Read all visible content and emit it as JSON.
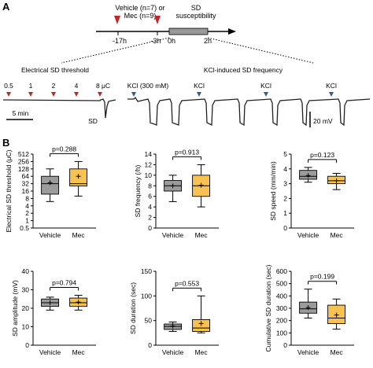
{
  "panel_a": {
    "letter": "A",
    "timeline": {
      "groups_line1": "Vehicle (n=7) or",
      "groups_line2": "Mec (n=9)",
      "sd_label_line1": "SD",
      "sd_label_line2": "susceptibility",
      "ticks": [
        "-17h",
        "-3h",
        "0h",
        "2h"
      ]
    },
    "electrical_title": "Electrical SD threshold",
    "stimuli": [
      "0.5",
      "1",
      "2",
      "4",
      "8 μC"
    ],
    "sd_label": "SD",
    "time_scale": "5 min",
    "kcl_title": "KCl-induced SD frequency",
    "kcl_labels": [
      "KCl (300 mM)",
      "KCl",
      "KCl",
      "KCl"
    ],
    "voltage_scale": "20 mV"
  },
  "panel_b": {
    "letter": "B",
    "colors": {
      "vehicle": "#9b9b9b",
      "mec": "#f7c250"
    }
  },
  "chart_data": [
    {
      "type": "box",
      "ylabel": "Electrical SD threshold (μC)",
      "yscale": "log2",
      "yticks": [
        "0.5",
        "1",
        "2",
        "4",
        "8",
        "16",
        "32",
        "64",
        "128",
        "256",
        "512"
      ],
      "ylim": [
        0.5,
        512
      ],
      "categories": [
        "Vehicle",
        "Mec"
      ],
      "pvalue": "p=0.288",
      "boxes": [
        {
          "min": 6,
          "q1": 12,
          "median": 32,
          "q3": 64,
          "max": 128,
          "mean": 35
        },
        {
          "min": 10,
          "q1": 26,
          "median": 32,
          "q3": 128,
          "max": 256,
          "mean": 64
        }
      ]
    },
    {
      "type": "box",
      "ylabel": "SD frequency (/h)",
      "yticks": [
        "0",
        "2",
        "4",
        "6",
        "8",
        "10",
        "12",
        "14"
      ],
      "ylim": [
        0,
        14
      ],
      "categories": [
        "Vehicle",
        "Mec"
      ],
      "pvalue": "p=0.913",
      "boxes": [
        {
          "min": 5,
          "q1": 7,
          "median": 8,
          "q3": 9,
          "max": 10,
          "mean": 8
        },
        {
          "min": 4,
          "q1": 6,
          "median": 8,
          "q3": 10,
          "max": 12,
          "mean": 8.1
        }
      ]
    },
    {
      "type": "box",
      "ylabel": "SD speed (mm/min)",
      "yticks": [
        "0",
        "1",
        "2",
        "3",
        "4",
        "5"
      ],
      "ylim": [
        0,
        5
      ],
      "categories": [
        "Vehicle",
        "Mec"
      ],
      "pvalue": "p=0.123",
      "boxes": [
        {
          "min": 3.1,
          "q1": 3.3,
          "median": 3.5,
          "q3": 3.9,
          "max": 4.1,
          "mean": 3.55
        },
        {
          "min": 2.6,
          "q1": 3.0,
          "median": 3.2,
          "q3": 3.5,
          "max": 3.7,
          "mean": 3.2
        }
      ]
    },
    {
      "type": "box",
      "ylabel": "SD amplitude (mV)",
      "yticks": [
        "0",
        "10",
        "20",
        "30",
        "40"
      ],
      "ylim": [
        0,
        40
      ],
      "categories": [
        "Vehicle",
        "Mec"
      ],
      "pvalue": "p=0.794",
      "boxes": [
        {
          "min": 19,
          "q1": 21,
          "median": 23,
          "q3": 25,
          "max": 26,
          "mean": 23
        },
        {
          "min": 19,
          "q1": 21,
          "median": 23,
          "q3": 25.5,
          "max": 27,
          "mean": 23.3
        }
      ]
    },
    {
      "type": "box",
      "ylabel": "SD duration (sec)",
      "yticks": [
        "0",
        "50",
        "100",
        "150"
      ],
      "ylim": [
        0,
        150
      ],
      "categories": [
        "Vehicle",
        "Mec"
      ],
      "pvalue": "p=0.553",
      "boxes": [
        {
          "min": 28,
          "q1": 32,
          "median": 38,
          "q3": 43,
          "max": 47,
          "mean": 39
        },
        {
          "min": 25,
          "q1": 28,
          "median": 35,
          "q3": 52,
          "max": 100,
          "mean": 44
        }
      ]
    },
    {
      "type": "box",
      "ylabel": "Cumulative SD duration (sec)",
      "yticks": [
        "0",
        "100",
        "200",
        "300",
        "400",
        "500",
        "600"
      ],
      "ylim": [
        0,
        600
      ],
      "categories": [
        "Vehicle",
        "Mec"
      ],
      "pvalue": "p=0.199",
      "boxes": [
        {
          "min": 220,
          "q1": 260,
          "median": 295,
          "q3": 350,
          "max": 455,
          "mean": 305
        },
        {
          "min": 130,
          "q1": 175,
          "median": 220,
          "q3": 325,
          "max": 375,
          "mean": 245
        }
      ]
    }
  ]
}
